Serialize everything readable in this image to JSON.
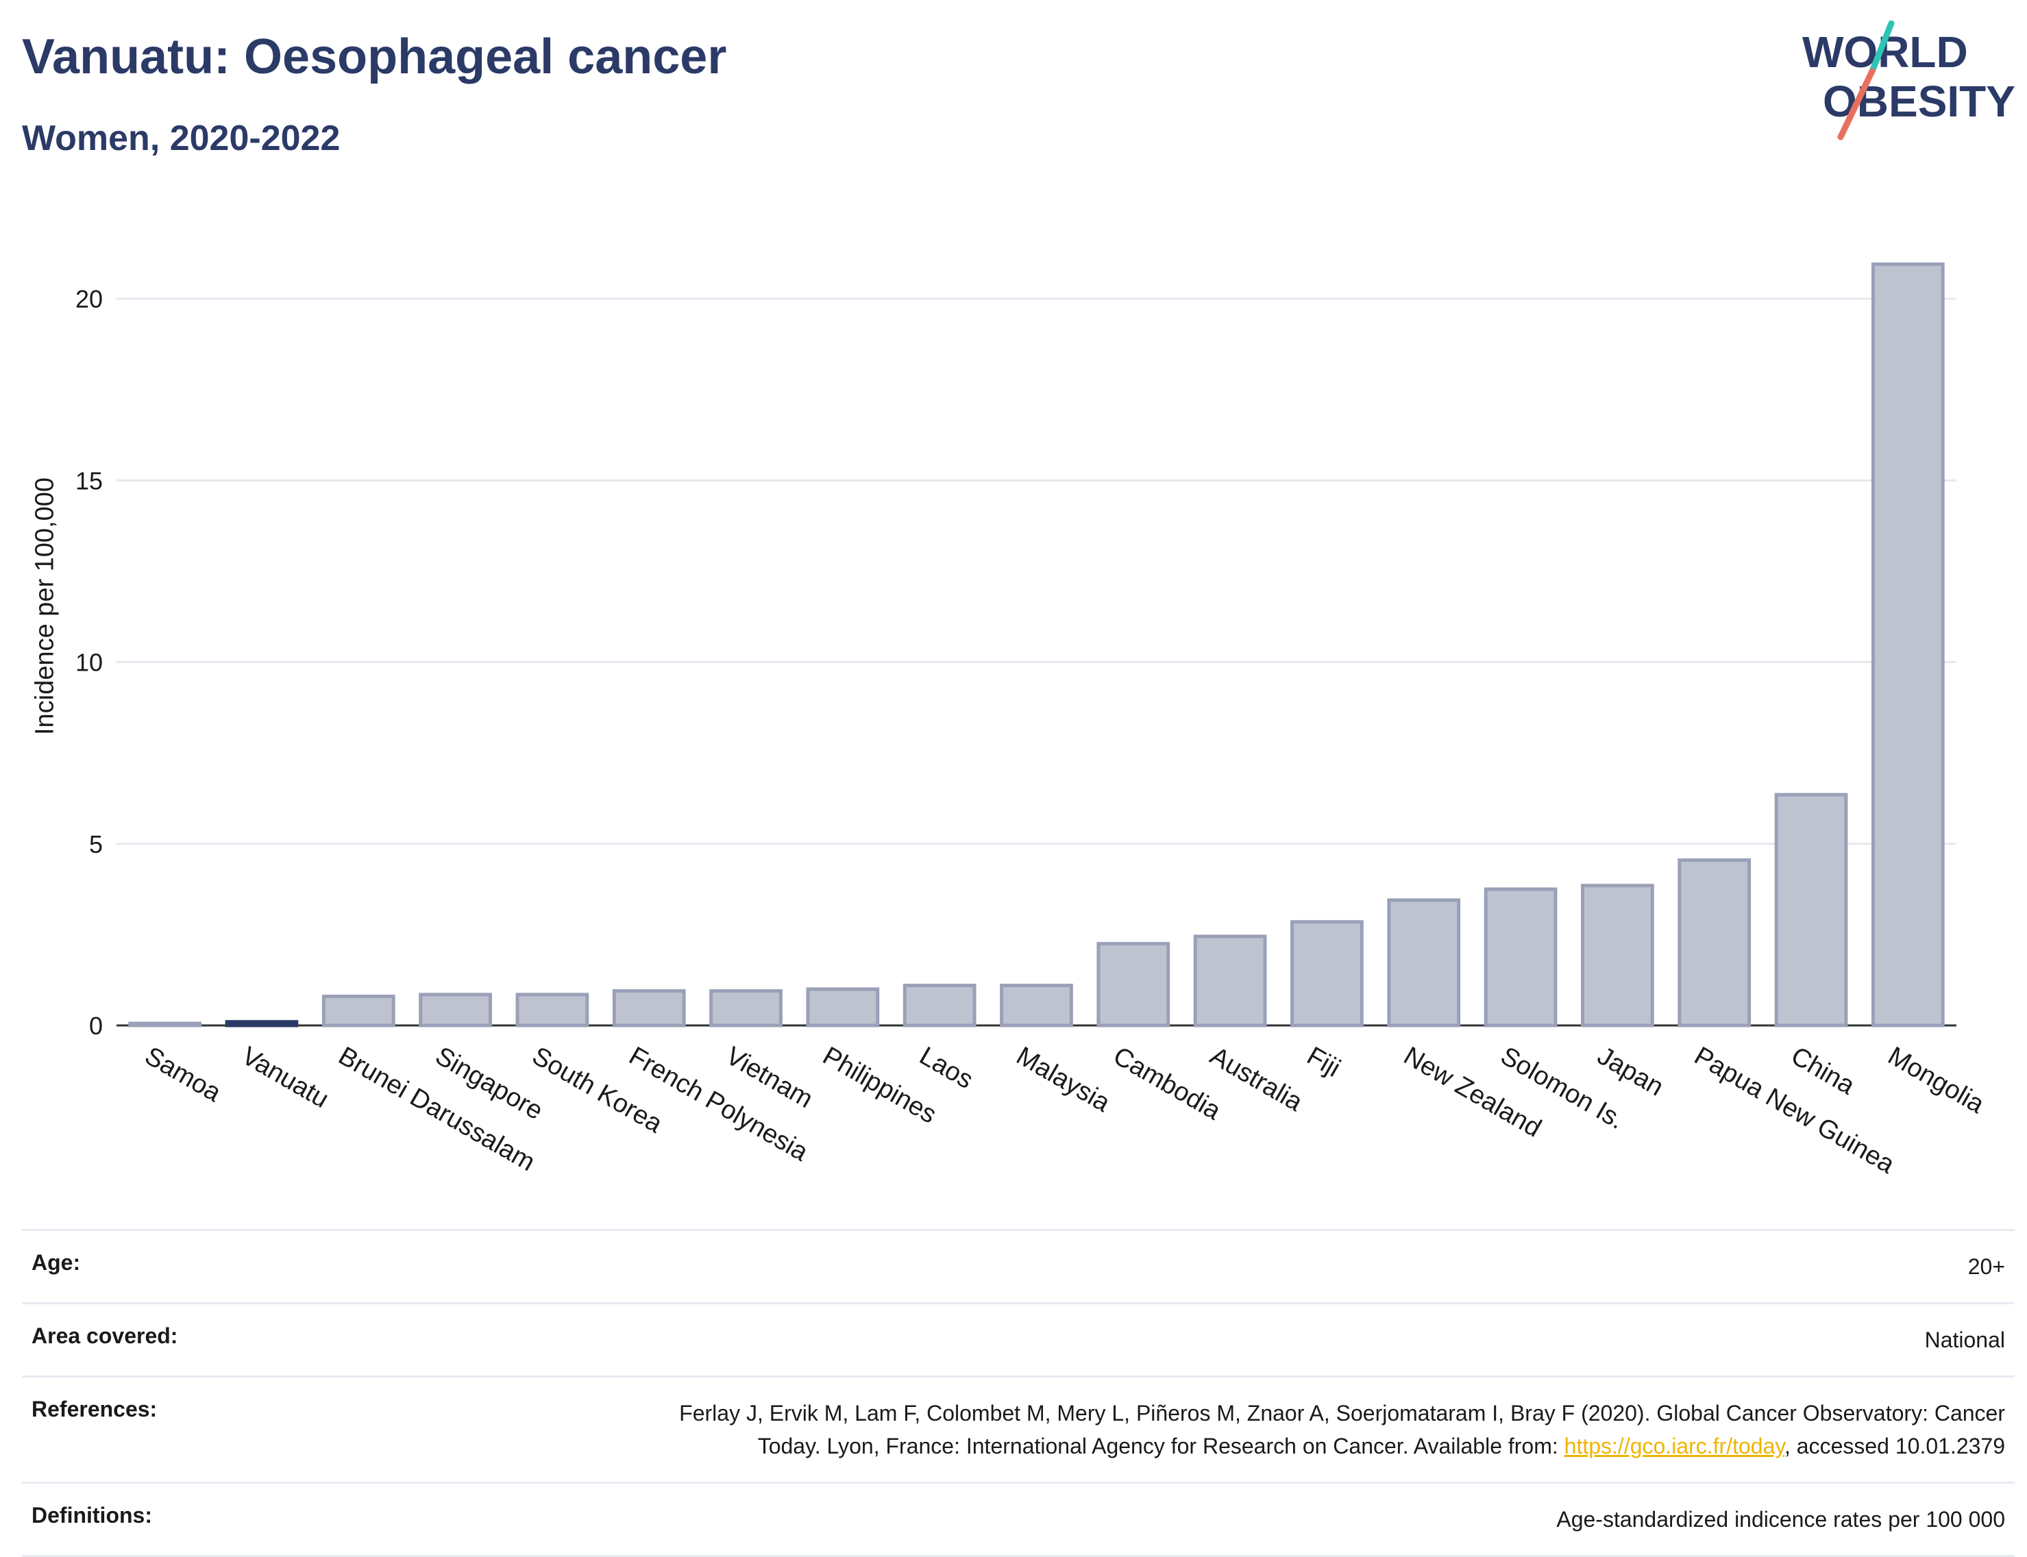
{
  "header": {
    "title": "Vanuatu: Oesophageal cancer",
    "subtitle": "Women, 2020-2022"
  },
  "logo": {
    "line1": "WORLD",
    "line2": "OBESITY",
    "colors": {
      "text": "#2b3a67",
      "slash_top": "#2ec4b6",
      "slash_bottom": "#e8705f"
    }
  },
  "chart_data": {
    "type": "bar",
    "title": "Vanuatu: Oesophageal cancer",
    "subtitle": "Women, 2020-2022",
    "xlabel": "",
    "ylabel": "Incidence per 100,000",
    "ylim": [
      0,
      22
    ],
    "yticks": [
      0,
      5,
      10,
      15,
      20
    ],
    "grid": true,
    "highlight": "Vanuatu",
    "colors": {
      "bar": "#bfc3d0",
      "bar_edge": "#9aa0b8",
      "highlight": "#2b3a67",
      "grid": "#e6e8ef"
    },
    "categories": [
      "Samoa",
      "Vanuatu",
      "Brunei Darussalam",
      "Singapore",
      "South Korea",
      "French Polynesia",
      "Vietnam",
      "Philippines",
      "Laos",
      "Malaysia",
      "Cambodia",
      "Australia",
      "Fiji",
      "New Zealand",
      "Solomon Is.",
      "Japan",
      "Papua New Guinea",
      "China",
      "Mongolia"
    ],
    "values": [
      0.05,
      0.1,
      0.8,
      0.85,
      0.85,
      0.95,
      0.95,
      1.0,
      1.1,
      1.1,
      2.25,
      2.45,
      2.85,
      3.45,
      3.75,
      3.85,
      4.55,
      6.35,
      20.95
    ]
  },
  "info": {
    "rows": [
      {
        "key": "Age:",
        "value": "20+"
      },
      {
        "key": "Area covered:",
        "value": "National"
      },
      {
        "key": "References:",
        "value_line1": "Ferlay J, Ervik M, Lam F, Colombet M, Mery L, Piñeros M, Znaor A, Soerjomataram I, Bray F (2020). Global Cancer Observatory: Cancer",
        "value_pre": "Today. Lyon, France: International Agency for Research on Cancer. Available from: ",
        "link": "https://gco.iarc.fr/today",
        "value_post": ", accessed 10.01.2379"
      },
      {
        "key": "Definitions:",
        "value": "Age-standardized indicence rates per 100 000"
      }
    ]
  }
}
